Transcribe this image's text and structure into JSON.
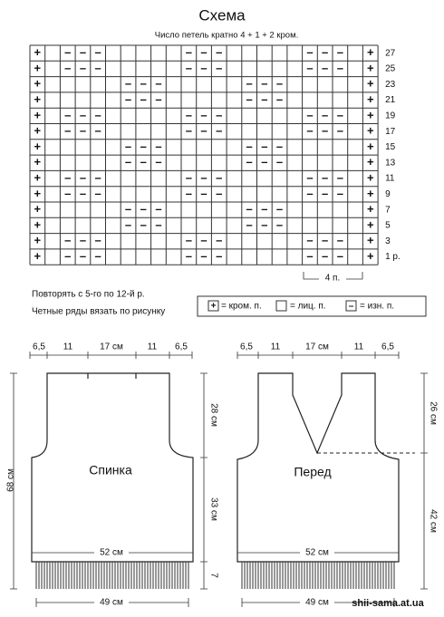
{
  "header": {
    "title": "Схема",
    "subtitle": "Число петель кратно 4 + 1 + 2 кром."
  },
  "chart": {
    "rows": [
      {
        "label": "27",
        "cells": [
          "+",
          null,
          "–",
          "–",
          "–",
          null,
          null,
          null,
          null,
          null,
          "–",
          "–",
          "–",
          null,
          null,
          null,
          null,
          null,
          "–",
          "–",
          "–",
          null,
          "+"
        ]
      },
      {
        "label": "25",
        "cells": [
          "+",
          null,
          "–",
          "–",
          "–",
          null,
          null,
          null,
          null,
          null,
          "–",
          "–",
          "–",
          null,
          null,
          null,
          null,
          null,
          "–",
          "–",
          "–",
          null,
          "+"
        ]
      },
      {
        "label": "23",
        "cells": [
          "+",
          null,
          null,
          null,
          null,
          null,
          "–",
          "–",
          "–",
          null,
          null,
          null,
          null,
          null,
          "–",
          "–",
          "–",
          null,
          null,
          null,
          null,
          null,
          "+"
        ]
      },
      {
        "label": "21",
        "cells": [
          "+",
          null,
          null,
          null,
          null,
          null,
          "–",
          "–",
          "–",
          null,
          null,
          null,
          null,
          null,
          "–",
          "–",
          "–",
          null,
          null,
          null,
          null,
          null,
          "+"
        ]
      },
      {
        "label": "19",
        "cells": [
          "+",
          null,
          "–",
          "–",
          "–",
          null,
          null,
          null,
          null,
          null,
          "–",
          "–",
          "–",
          null,
          null,
          null,
          null,
          null,
          "–",
          "–",
          "–",
          null,
          "+"
        ]
      },
      {
        "label": "17",
        "cells": [
          "+",
          null,
          "–",
          "–",
          "–",
          null,
          null,
          null,
          null,
          null,
          "–",
          "–",
          "–",
          null,
          null,
          null,
          null,
          null,
          "–",
          "–",
          "–",
          null,
          "+"
        ]
      },
      {
        "label": "15",
        "cells": [
          "+",
          null,
          null,
          null,
          null,
          null,
          "–",
          "–",
          "–",
          null,
          null,
          null,
          null,
          null,
          "–",
          "–",
          "–",
          null,
          null,
          null,
          null,
          null,
          "+"
        ]
      },
      {
        "label": "13",
        "cells": [
          "+",
          null,
          null,
          null,
          null,
          null,
          "–",
          "–",
          "–",
          null,
          null,
          null,
          null,
          null,
          "–",
          "–",
          "–",
          null,
          null,
          null,
          null,
          null,
          "+"
        ]
      },
      {
        "label": "11",
        "cells": [
          "+",
          null,
          "–",
          "–",
          "–",
          null,
          null,
          null,
          null,
          null,
          "–",
          "–",
          "–",
          null,
          null,
          null,
          null,
          null,
          "–",
          "–",
          "–",
          null,
          "+"
        ]
      },
      {
        "label": "9",
        "cells": [
          "+",
          null,
          "–",
          "–",
          "–",
          null,
          null,
          null,
          null,
          null,
          "–",
          "–",
          "–",
          null,
          null,
          null,
          null,
          null,
          "–",
          "–",
          "–",
          null,
          "+"
        ]
      },
      {
        "label": "7",
        "cells": [
          "+",
          null,
          null,
          null,
          null,
          null,
          "–",
          "–",
          "–",
          null,
          null,
          null,
          null,
          null,
          "–",
          "–",
          "–",
          null,
          null,
          null,
          null,
          null,
          "+"
        ]
      },
      {
        "label": "5",
        "cells": [
          "+",
          null,
          null,
          null,
          null,
          null,
          "–",
          "–",
          "–",
          null,
          null,
          null,
          null,
          null,
          "–",
          "–",
          "–",
          null,
          null,
          null,
          null,
          null,
          "+"
        ]
      },
      {
        "label": "3",
        "cells": [
          "+",
          null,
          "–",
          "–",
          "–",
          null,
          null,
          null,
          null,
          null,
          "–",
          "–",
          "–",
          null,
          null,
          null,
          null,
          null,
          "–",
          "–",
          "–",
          null,
          "+"
        ]
      },
      {
        "label": "1 р.",
        "cells": [
          "+",
          null,
          "–",
          "–",
          "–",
          null,
          null,
          null,
          null,
          null,
          "–",
          "–",
          "–",
          null,
          null,
          null,
          null,
          null,
          "–",
          "–",
          "–",
          null,
          "+"
        ]
      }
    ],
    "repeat_label": "4 п."
  },
  "notes": [
    "Повторять с 5-го по 12-й р.",
    "Четные ряды вязать по рисунку"
  ],
  "legend": [
    {
      "symbol": "+",
      "label": "= кром. п."
    },
    {
      "label": "= лиц. п."
    },
    {
      "symbol": "–",
      "label": "= изн. п."
    }
  ],
  "back": {
    "title": "Спинка",
    "top_widths": [
      "6,5",
      "11",
      "17 см",
      "11",
      "6,5"
    ],
    "total_height": "68 см",
    "side_heights": [
      "28 см",
      "33 см",
      "7"
    ],
    "width": "52 см",
    "fringe_width": "49 см"
  },
  "front": {
    "title": "Перед",
    "top_widths": [
      "6,5",
      "11",
      "17 см",
      "11",
      "6,5"
    ],
    "side_heights": [
      "26 см",
      "42 см"
    ],
    "width": "52 см",
    "fringe_width": "49 см"
  },
  "watermark": "shii-sama.at.ua"
}
